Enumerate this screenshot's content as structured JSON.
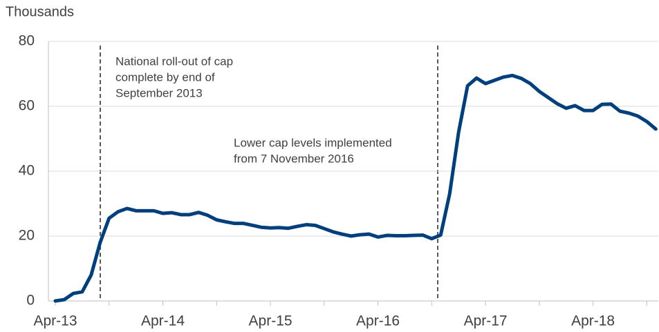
{
  "chart_data": {
    "type": "line",
    "title": "Thousands",
    "categories": [
      "Apr-13",
      null,
      null,
      null,
      null,
      null,
      null,
      null,
      null,
      null,
      null,
      null,
      "Apr-14",
      null,
      null,
      null,
      null,
      null,
      null,
      null,
      null,
      null,
      null,
      null,
      "Apr-15",
      null,
      null,
      null,
      null,
      null,
      null,
      null,
      null,
      null,
      null,
      null,
      "Apr-16",
      null,
      null,
      null,
      null,
      null,
      null,
      null,
      null,
      null,
      null,
      null,
      "Apr-17",
      null,
      null,
      null,
      null,
      null,
      null,
      null,
      null,
      null,
      null,
      null,
      "Apr-18",
      null,
      null,
      null,
      null,
      null,
      null,
      null
    ],
    "series": [
      {
        "name": "Thousands",
        "color": "#003f7d",
        "values": [
          0,
          0.4,
          2.3,
          2.8,
          8,
          18,
          25.5,
          27.5,
          28.5,
          27.8,
          27.8,
          27.8,
          27,
          27.2,
          26.6,
          26.6,
          27.3,
          26.4,
          25,
          24.4,
          23.9,
          23.9,
          23.3,
          22.7,
          22.5,
          22.6,
          22.4,
          23,
          23.5,
          23.3,
          22.3,
          21.3,
          20.6,
          20,
          20.4,
          20.6,
          19.7,
          20.2,
          20.1,
          20.1,
          20.2,
          20.3,
          19.2,
          20.3,
          33,
          52,
          66.3,
          68.7,
          67,
          68,
          69,
          69.5,
          68.6,
          67,
          64.6,
          62.7,
          60.8,
          59.4,
          60.2,
          58.7,
          58.7,
          60.6,
          60.7,
          58.5,
          57.9,
          57,
          55.3,
          53
        ]
      }
    ],
    "ylim": [
      0,
      80
    ],
    "yticks": [
      0,
      20,
      40,
      60,
      80
    ],
    "grid": true,
    "annotations": [
      {
        "lines": [
          "National roll-out of cap",
          "complete by end of",
          "September 2013"
        ]
      },
      {
        "lines": [
          "Lower cap levels implemented",
          "from 7 November 2016"
        ]
      }
    ]
  }
}
